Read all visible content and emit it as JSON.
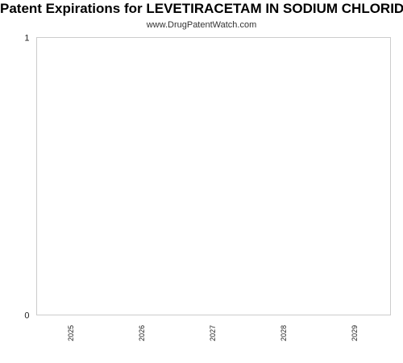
{
  "chart_data": {
    "type": "bar",
    "title": "Patent Expirations for LEVETIRACETAM IN SODIUM CHLORIDE",
    "subtitle": "www.DrugPatentWatch.com",
    "xlabel": "",
    "ylabel": "",
    "categories": [
      "2025",
      "2026",
      "2027",
      "2028",
      "2029"
    ],
    "series": [
      {
        "values": [
          0,
          0,
          0,
          0,
          0
        ]
      }
    ],
    "ylim": [
      0,
      1
    ],
    "yticks": [
      "0",
      "1"
    ],
    "grid": false,
    "legend": "none",
    "colors": {
      "axis": "#cccccc",
      "text": "#222222"
    }
  }
}
